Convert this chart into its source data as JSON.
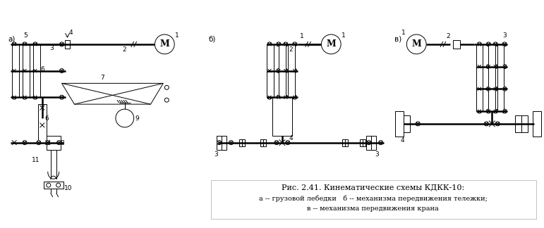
{
  "title_line1": "Рис. 2.41. Кинематические схемы КДКК-10:",
  "title_line2": "а -- грузовой лебедки   б -- механизма передвижения тележки;",
  "title_line3": "в -- механизма передвижения крана",
  "bg_color": "#ffffff",
  "line_color": "#000000",
  "fig_width": 7.71,
  "fig_height": 3.24,
  "dpi": 100,
  "label_a": "а)",
  "label_b": "б)",
  "label_v": "в)"
}
